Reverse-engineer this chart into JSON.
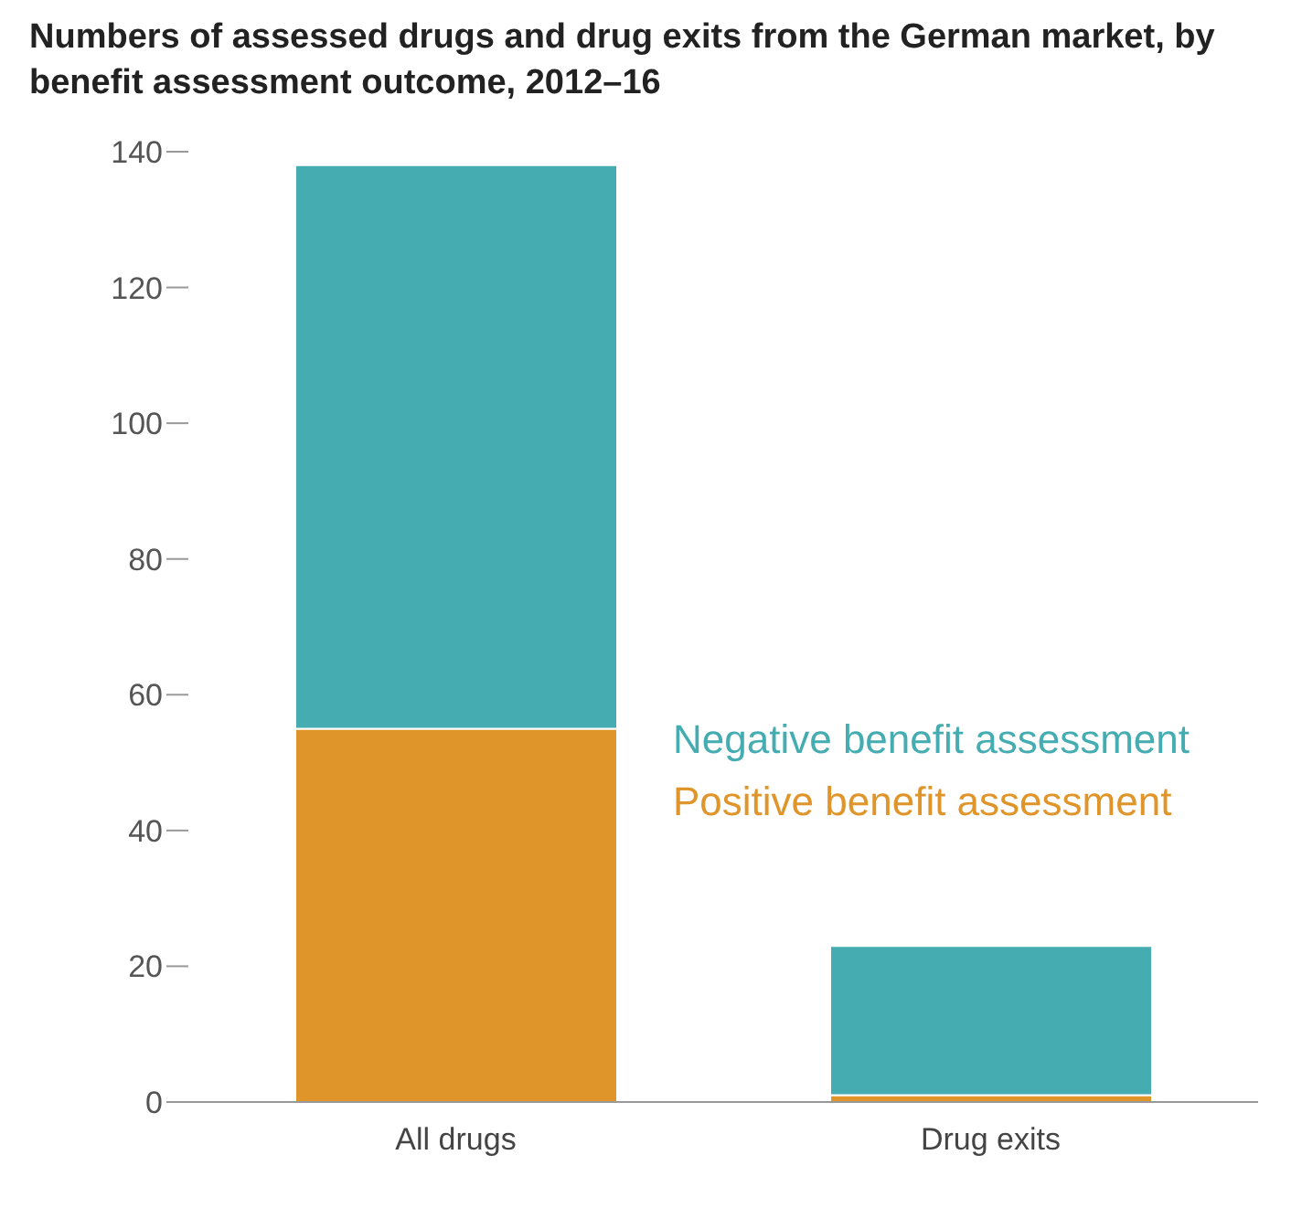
{
  "chart_data": {
    "type": "bar",
    "title": "Numbers of assessed drugs and drug exits from the German market, by benefit assessment outcome, 2012–16",
    "categories": [
      "All drugs",
      "Drug exits"
    ],
    "stacked": true,
    "series": [
      {
        "name": "Positive benefit assessment",
        "color": "#e0952a",
        "values": [
          55,
          1
        ]
      },
      {
        "name": "Negative benefit assessment",
        "color": "#45adb1",
        "values": [
          83,
          22
        ]
      }
    ],
    "ylim": [
      0,
      140
    ],
    "yticks": [
      0,
      20,
      40,
      60,
      80,
      100,
      120,
      140
    ],
    "grid": false,
    "legend": "right"
  }
}
